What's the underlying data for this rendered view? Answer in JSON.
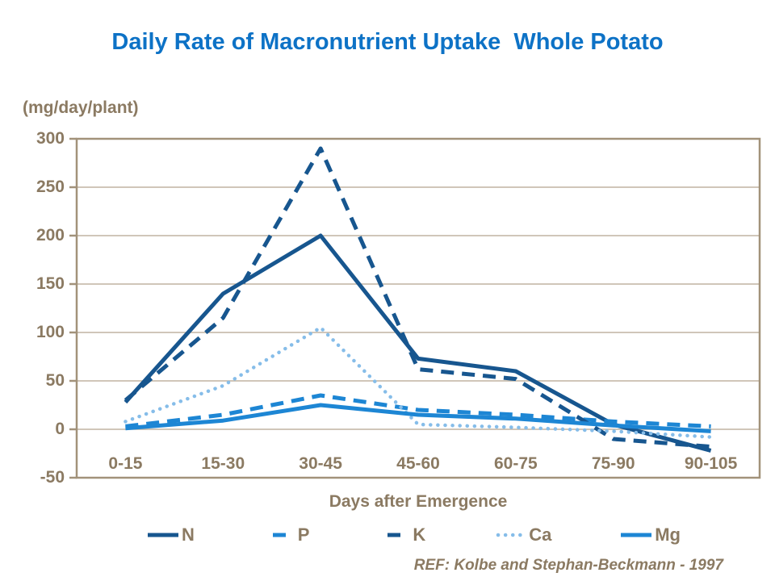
{
  "title": "Daily Rate of Macronutrient Uptake  Whole Potato",
  "ref_note": "REF: Kolbe and Stephan-Beckmann - 1997",
  "colors": {
    "title_blue": "#0d72c6",
    "dark_blue": "#17568f",
    "medium_blue": "#1d86d4",
    "light_blue": "#86bde9",
    "axis_text": "#8b7a62",
    "gridline": "#c0b4a2",
    "axis_border": "#a2927a",
    "background": "#ffffff"
  },
  "chart_data": {
    "type": "line",
    "title": "Daily Rate of Macronutrient Uptake  Whole Potato",
    "unit_label": "(mg/day/plant)",
    "xlabel": "Days after Emergence",
    "ylabel": "",
    "categories": [
      "0-15",
      "15-30",
      "30-45",
      "45-60",
      "60-75",
      "75-90",
      "90-105"
    ],
    "y_ticks": [
      300,
      250,
      200,
      150,
      100,
      50,
      0,
      -50
    ],
    "ylim": [
      -50,
      300
    ],
    "grid": true,
    "legend_position": "bottom",
    "series": [
      {
        "name": "N",
        "style": "solid",
        "color_key": "dark_blue",
        "values": [
          28,
          140,
          200,
          73,
          60,
          5,
          -22
        ]
      },
      {
        "name": "P",
        "style": "dashed",
        "color_key": "medium_blue",
        "values": [
          3,
          15,
          35,
          20,
          15,
          8,
          3
        ]
      },
      {
        "name": "K",
        "style": "dashed",
        "color_key": "dark_blue",
        "values": [
          30,
          115,
          290,
          62,
          52,
          -10,
          -18
        ]
      },
      {
        "name": "Ca",
        "style": "dotted",
        "color_key": "light_blue",
        "values": [
          8,
          45,
          105,
          5,
          2,
          -2,
          -8
        ]
      },
      {
        "name": "Mg",
        "style": "solid",
        "color_key": "medium_blue",
        "values": [
          1,
          9,
          25,
          15,
          11,
          4,
          -2
        ]
      }
    ]
  }
}
